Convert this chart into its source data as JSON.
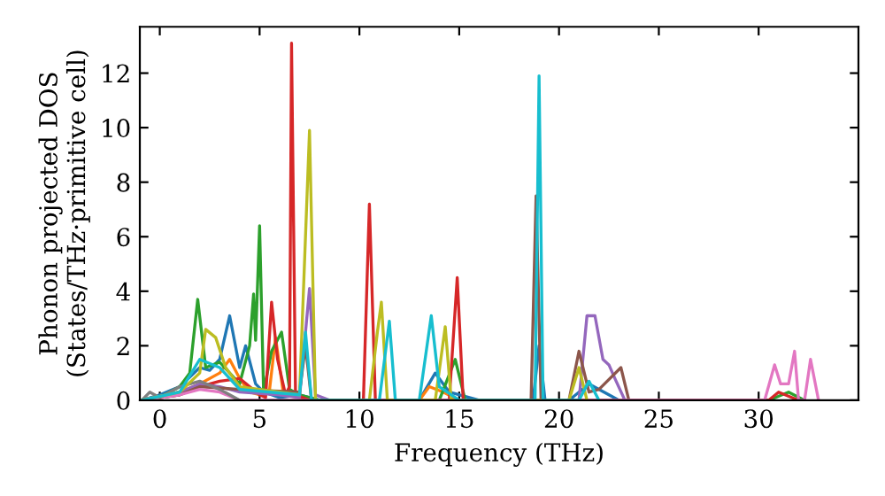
{
  "chart_data": {
    "type": "line",
    "xlabel": "Frequency (THz)",
    "ylabel": "Phonon projected DOS\n(States/THz·primitive cell)",
    "xlim": [
      -1,
      35
    ],
    "ylim": [
      0,
      13.7
    ],
    "xticks": [
      0,
      5,
      10,
      15,
      20,
      25,
      30
    ],
    "yticks": [
      0,
      2,
      4,
      6,
      8,
      10,
      12
    ],
    "grid": false,
    "legend": false,
    "marker": "none",
    "line_style": "solid",
    "series": [
      {
        "color": "#1f77b4",
        "x": [
          -0.9,
          0,
          1,
          2,
          2.5,
          3,
          3.5,
          4,
          4.3,
          4.8,
          5.2,
          5.6,
          6,
          7,
          8,
          10,
          13,
          13.8,
          14.5,
          16,
          18.7,
          19,
          19.3,
          20.5,
          21.5,
          22.5,
          23
        ],
        "values": [
          0,
          0.2,
          0.5,
          1.2,
          1.1,
          1.5,
          3.1,
          1.2,
          2.0,
          0.6,
          0.3,
          0.2,
          0.1,
          0.2,
          0,
          0,
          0,
          1.0,
          0.3,
          0,
          0,
          2.0,
          0,
          0,
          0.6,
          0.2,
          0
        ]
      },
      {
        "color": "#ff7f0e",
        "x": [
          -0.9,
          1,
          2,
          3,
          3.5,
          4,
          4.5,
          5,
          5.5,
          5.8,
          6.2,
          7,
          8,
          13,
          13.5,
          14.2,
          15
        ],
        "values": [
          0,
          0.3,
          0.6,
          1.0,
          1.5,
          0.8,
          0.3,
          0.2,
          0.4,
          2.3,
          0.2,
          0.1,
          0,
          0,
          0.5,
          0.3,
          0
        ]
      },
      {
        "color": "#2ca02c",
        "x": [
          -0.9,
          0,
          1,
          1.5,
          1.9,
          2.3,
          3,
          4,
          4.5,
          4.7,
          4.8,
          5,
          5.2,
          5.6,
          6.1,
          6.5,
          7,
          8,
          14,
          14.8,
          15.3,
          30.5,
          31.5,
          32.3
        ],
        "values": [
          0,
          0.1,
          0.5,
          1.0,
          3.7,
          1.2,
          1.4,
          0.6,
          2.0,
          3.9,
          2.2,
          6.4,
          0.3,
          1.8,
          2.5,
          0.4,
          0.2,
          0,
          0,
          1.5,
          0,
          0,
          0.3,
          0
        ]
      },
      {
        "color": "#d62728",
        "x": [
          -0.9,
          1,
          2,
          3,
          4,
          5,
          5.3,
          5.6,
          5.9,
          6.3,
          6.5,
          6.6,
          6.8,
          7.5,
          10.2,
          10.5,
          10.8,
          14.5,
          14.9,
          15.2,
          30.5,
          31,
          32
        ],
        "values": [
          0,
          0.2,
          0.5,
          0.7,
          0.8,
          0.2,
          0.1,
          3.6,
          1.5,
          0.2,
          0.5,
          13.1,
          0.2,
          0,
          0,
          7.2,
          0,
          0,
          4.5,
          0,
          0,
          0.3,
          0
        ]
      },
      {
        "color": "#9467bd",
        "x": [
          -0.9,
          1,
          2,
          3,
          4,
          6,
          7,
          7.5,
          7.8,
          8.5,
          21,
          21.4,
          21.8,
          22.2,
          22.5,
          22.8,
          23.3
        ],
        "values": [
          0,
          0.3,
          0.6,
          0.5,
          0.3,
          0.2,
          0.1,
          4.1,
          0.2,
          0,
          0,
          3.1,
          3.1,
          1.5,
          1.3,
          0.8,
          0
        ]
      },
      {
        "color": "#8c564b",
        "x": [
          -0.9,
          1,
          2,
          4,
          7,
          7.3,
          7.6,
          18.6,
          18.85,
          19.1,
          20.5,
          21,
          21.5,
          22,
          23.1,
          23.5
        ],
        "values": [
          0,
          0.2,
          0.5,
          0.4,
          0.3,
          2.0,
          0,
          0,
          7.5,
          0,
          0,
          1.8,
          0.3,
          0.4,
          1.2,
          0
        ]
      },
      {
        "color": "#e377c2",
        "x": [
          -0.9,
          1,
          2,
          3,
          4,
          30.3,
          30.8,
          31.1,
          31.5,
          31.8,
          32,
          32.3,
          32.6,
          33
        ],
        "values": [
          0,
          0.2,
          0.4,
          0.3,
          0,
          0,
          1.3,
          0.6,
          0.6,
          1.8,
          0,
          0,
          1.5,
          0
        ]
      },
      {
        "color": "#7f7f7f",
        "x": [
          -0.9,
          -0.5,
          0,
          0.5,
          1,
          2,
          3,
          4
        ],
        "values": [
          0,
          0.3,
          0.1,
          0.3,
          0.5,
          0.7,
          0.4,
          0
        ]
      },
      {
        "color": "#bcbd22",
        "x": [
          -0.9,
          1,
          2,
          2.3,
          2.8,
          3.3,
          4,
          7,
          7.5,
          7.8,
          10.5,
          10.9,
          11.1,
          11.4,
          13.8,
          14.3,
          14.6,
          20.5,
          21,
          21.4
        ],
        "values": [
          0,
          0.3,
          1.0,
          2.6,
          2.3,
          1.2,
          0.5,
          0.2,
          9.9,
          0,
          0,
          2.5,
          3.6,
          0,
          0,
          2.7,
          0,
          0,
          1.2,
          0
        ]
      },
      {
        "color": "#17becf",
        "x": [
          -0.9,
          1,
          2,
          3,
          4,
          7,
          7.3,
          7.6,
          11,
          11.5,
          11.8,
          13,
          13.6,
          14,
          15,
          18.8,
          19,
          19.2,
          21,
          21.5,
          22
        ],
        "values": [
          0,
          0.3,
          1.5,
          1.2,
          0.4,
          0.2,
          2.5,
          0,
          0,
          2.9,
          0,
          0,
          3.1,
          0.5,
          0,
          0,
          11.9,
          0,
          0,
          0.7,
          0
        ]
      }
    ]
  }
}
